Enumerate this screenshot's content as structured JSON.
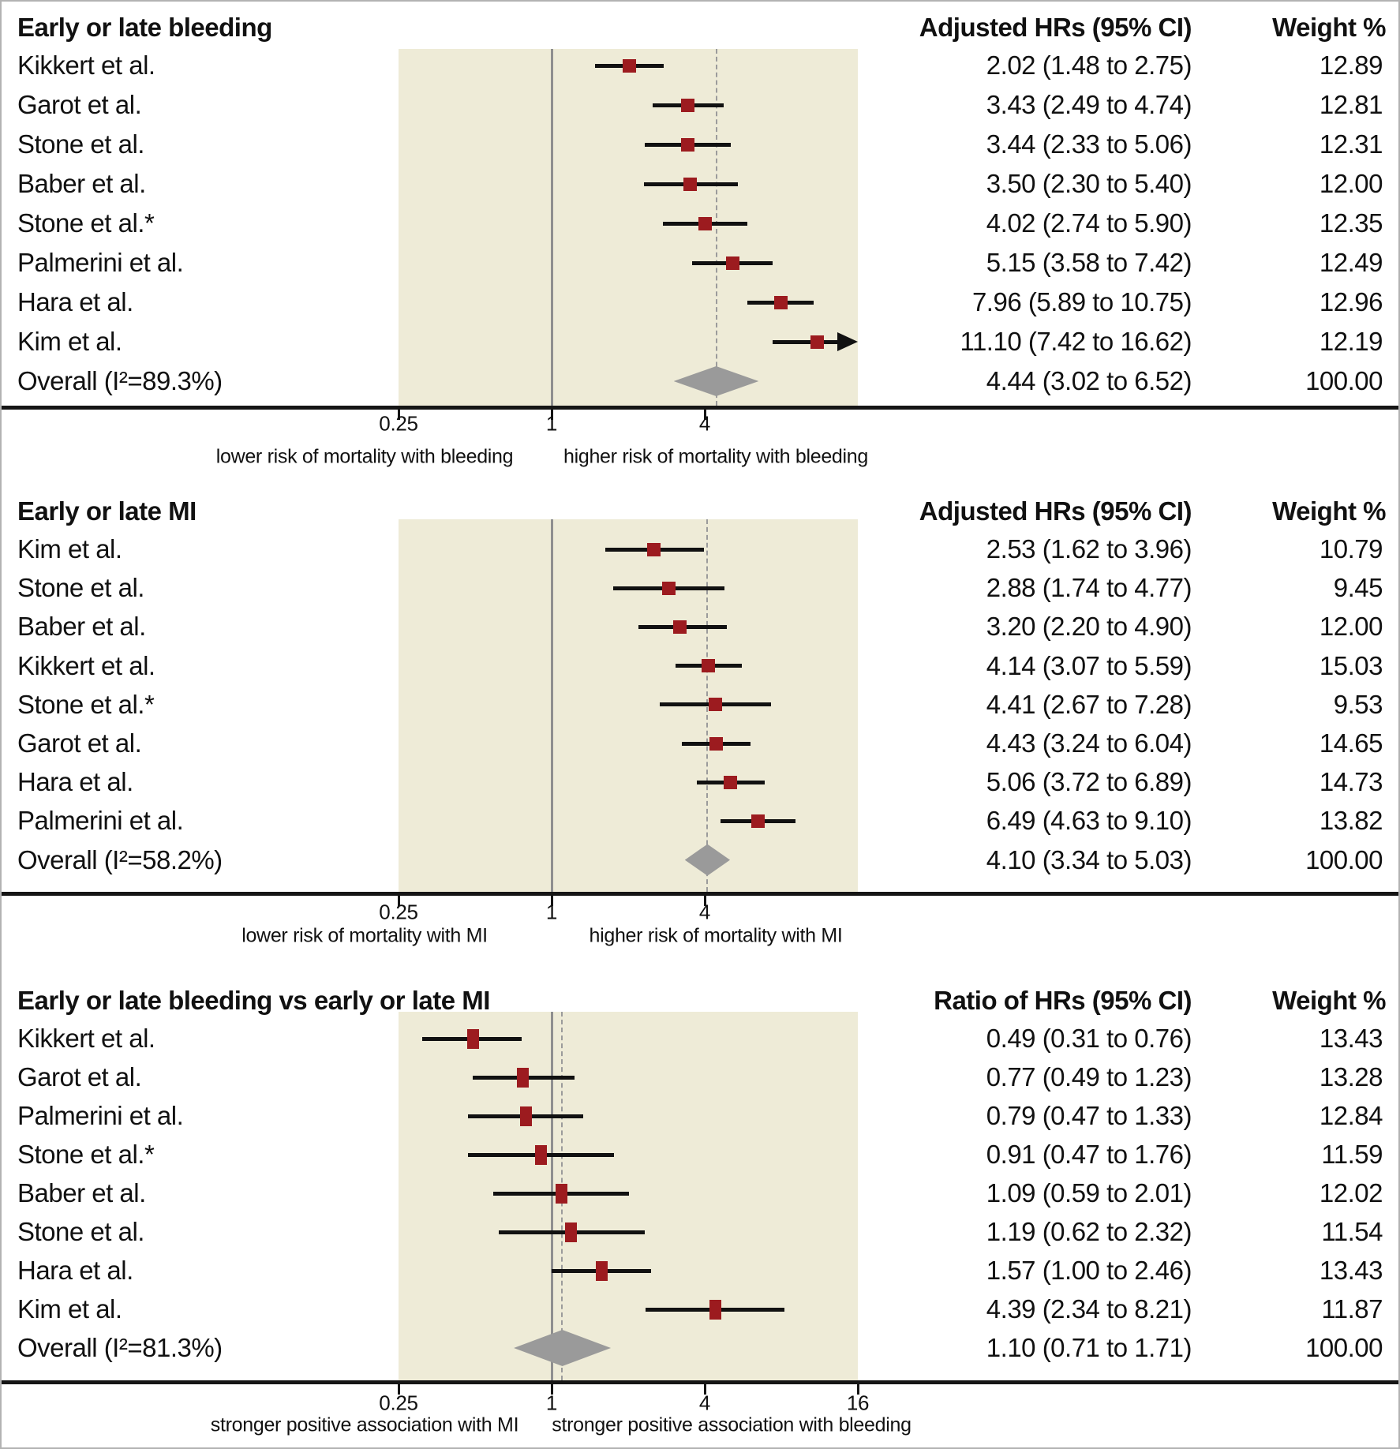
{
  "colors": {
    "plot_background": "#eeebd7",
    "marker_red": "#9c1b1f",
    "diamond_gray": "#9a9a9a",
    "reference_line_gray": "#8f8f8f",
    "dashed_line_gray": "#9b9b9b",
    "axis_black": "#151515"
  },
  "chart_data": [
    {
      "type": "forest",
      "title": "Early or late bleeding",
      "effect_header": "Adjusted HRs (95% CI)",
      "weight_header": "Weight %",
      "axis": {
        "scale": "log2",
        "min": 0.25,
        "max": 16,
        "reference": 1,
        "ticks": [
          0.25,
          1,
          4
        ],
        "left_label": "lower risk of mortality with bleeding",
        "right_label": "higher risk of mortality with bleeding"
      },
      "rows": [
        {
          "study": "Kikkert et al.",
          "hr": 2.02,
          "lo": 1.48,
          "hi": 2.75,
          "display": "2.02 (1.48 to 2.75)",
          "weight": "12.89"
        },
        {
          "study": "Garot et al.",
          "hr": 3.43,
          "lo": 2.49,
          "hi": 4.74,
          "display": "3.43 (2.49 to 4.74)",
          "weight": "12.81"
        },
        {
          "study": "Stone et al.",
          "hr": 3.44,
          "lo": 2.33,
          "hi": 5.06,
          "display": "3.44 (2.33 to 5.06)",
          "weight": "12.31"
        },
        {
          "study": "Baber et al.",
          "hr": 3.5,
          "lo": 2.3,
          "hi": 5.4,
          "display": "3.50 (2.30 to 5.40)",
          "weight": "12.00"
        },
        {
          "study": "Stone et al.*",
          "hr": 4.02,
          "lo": 2.74,
          "hi": 5.9,
          "display": "4.02 (2.74 to 5.90)",
          "weight": "12.35"
        },
        {
          "study": "Palmerini et al.",
          "hr": 5.15,
          "lo": 3.58,
          "hi": 7.42,
          "display": "5.15 (3.58 to 7.42)",
          "weight": "12.49"
        },
        {
          "study": "Hara et al.",
          "hr": 7.96,
          "lo": 5.89,
          "hi": 10.75,
          "display": "7.96 (5.89 to 10.75)",
          "weight": "12.96"
        },
        {
          "study": "Kim et al.",
          "hr": 11.1,
          "lo": 7.42,
          "hi": 16.62,
          "display": "11.10 (7.42 to 16.62)",
          "weight": "12.19",
          "clipped_high": true
        }
      ],
      "overall": {
        "label": "Overall (I²=89.3%)",
        "hr": 4.44,
        "lo": 3.02,
        "hi": 6.52,
        "display": "4.44 (3.02 to 6.52)",
        "weight": "100.00"
      }
    },
    {
      "type": "forest",
      "title": "Early or late MI",
      "effect_header": "Adjusted HRs (95% CI)",
      "weight_header": "Weight %",
      "axis": {
        "scale": "log2",
        "min": 0.25,
        "max": 16,
        "reference": 1,
        "ticks": [
          0.25,
          1,
          4
        ],
        "left_label": "lower risk of mortality with MI",
        "right_label": "higher risk of mortality with MI"
      },
      "rows": [
        {
          "study": "Kim et al.",
          "hr": 2.53,
          "lo": 1.62,
          "hi": 3.96,
          "display": "2.53 (1.62 to 3.96)",
          "weight": "10.79"
        },
        {
          "study": "Stone et al.",
          "hr": 2.88,
          "lo": 1.74,
          "hi": 4.77,
          "display": "2.88 (1.74 to 4.77)",
          "weight": "9.45"
        },
        {
          "study": "Baber et al.",
          "hr": 3.2,
          "lo": 2.2,
          "hi": 4.9,
          "display": "3.20 (2.20 to 4.90)",
          "weight": "12.00"
        },
        {
          "study": "Kikkert et al.",
          "hr": 4.14,
          "lo": 3.07,
          "hi": 5.59,
          "display": "4.14 (3.07 to 5.59)",
          "weight": "15.03"
        },
        {
          "study": "Stone et al.*",
          "hr": 4.41,
          "lo": 2.67,
          "hi": 7.28,
          "display": "4.41 (2.67 to 7.28)",
          "weight": "9.53"
        },
        {
          "study": "Garot et al.",
          "hr": 4.43,
          "lo": 3.24,
          "hi": 6.04,
          "display": "4.43 (3.24 to 6.04)",
          "weight": "14.65"
        },
        {
          "study": "Hara et al.",
          "hr": 5.06,
          "lo": 3.72,
          "hi": 6.89,
          "display": "5.06 (3.72 to 6.89)",
          "weight": "14.73"
        },
        {
          "study": "Palmerini et al.",
          "hr": 6.49,
          "lo": 4.63,
          "hi": 9.1,
          "display": "6.49 (4.63 to 9.10)",
          "weight": "13.82"
        }
      ],
      "overall": {
        "label": "Overall (I²=58.2%)",
        "hr": 4.1,
        "lo": 3.34,
        "hi": 5.03,
        "display": "4.10 (3.34 to 5.03)",
        "weight": "100.00"
      }
    },
    {
      "type": "forest",
      "title": "Early or late bleeding vs early or late MI",
      "effect_header": "Ratio of HRs (95% CI)",
      "weight_header": "Weight %",
      "axis": {
        "scale": "log2",
        "min": 0.25,
        "max": 16,
        "reference": 1,
        "ticks": [
          0.25,
          1,
          4,
          16
        ],
        "left_label": "stronger positive association with MI",
        "right_label": "stronger positive association with bleeding"
      },
      "rows": [
        {
          "study": "Kikkert et al.",
          "hr": 0.49,
          "lo": 0.31,
          "hi": 0.76,
          "display": "0.49 (0.31 to 0.76)",
          "weight": "13.43"
        },
        {
          "study": "Garot et al.",
          "hr": 0.77,
          "lo": 0.49,
          "hi": 1.23,
          "display": "0.77 (0.49 to 1.23)",
          "weight": "13.28"
        },
        {
          "study": "Palmerini et al.",
          "hr": 0.79,
          "lo": 0.47,
          "hi": 1.33,
          "display": "0.79 (0.47 to 1.33)",
          "weight": "12.84"
        },
        {
          "study": "Stone et al.*",
          "hr": 0.91,
          "lo": 0.47,
          "hi": 1.76,
          "display": "0.91 (0.47 to 1.76)",
          "weight": "11.59"
        },
        {
          "study": "Baber et al.",
          "hr": 1.09,
          "lo": 0.59,
          "hi": 2.01,
          "display": "1.09 (0.59 to 2.01)",
          "weight": "12.02"
        },
        {
          "study": "Stone et al.",
          "hr": 1.19,
          "lo": 0.62,
          "hi": 2.32,
          "display": "1.19 (0.62 to 2.32)",
          "weight": "11.54"
        },
        {
          "study": "Hara et al.",
          "hr": 1.57,
          "lo": 1.0,
          "hi": 2.46,
          "display": "1.57 (1.00 to 2.46)",
          "weight": "13.43"
        },
        {
          "study": "Kim et al.",
          "hr": 4.39,
          "lo": 2.34,
          "hi": 8.21,
          "display": "4.39 (2.34 to 8.21)",
          "weight": "11.87"
        }
      ],
      "overall": {
        "label": "Overall (I²=81.3%)",
        "hr": 1.1,
        "lo": 0.71,
        "hi": 1.71,
        "display": "1.10 (0.71 to 1.71)",
        "weight": "100.00"
      }
    }
  ]
}
